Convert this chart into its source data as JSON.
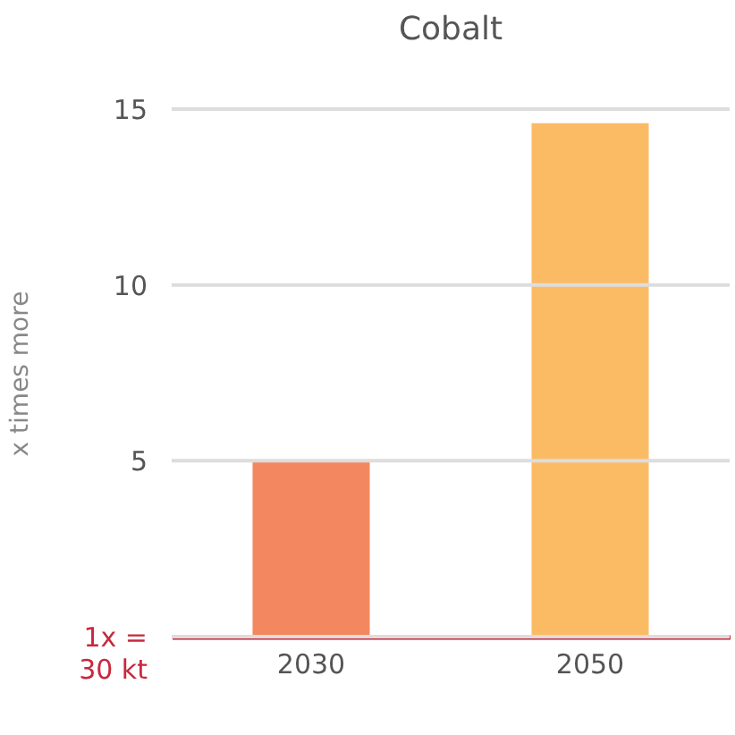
{
  "chart_data": {
    "type": "bar",
    "title": "Cobalt",
    "ylabel": "x times more",
    "categories": [
      "2030",
      "2050"
    ],
    "values": [
      5,
      14.6
    ],
    "colors": [
      "#f27a4e",
      "#fbb454"
    ],
    "ylim": [
      0,
      15
    ],
    "yticks": [
      {
        "value": 0,
        "label": "1x =\n30 kt"
      },
      5,
      10,
      15
    ],
    "grid": "y"
  }
}
